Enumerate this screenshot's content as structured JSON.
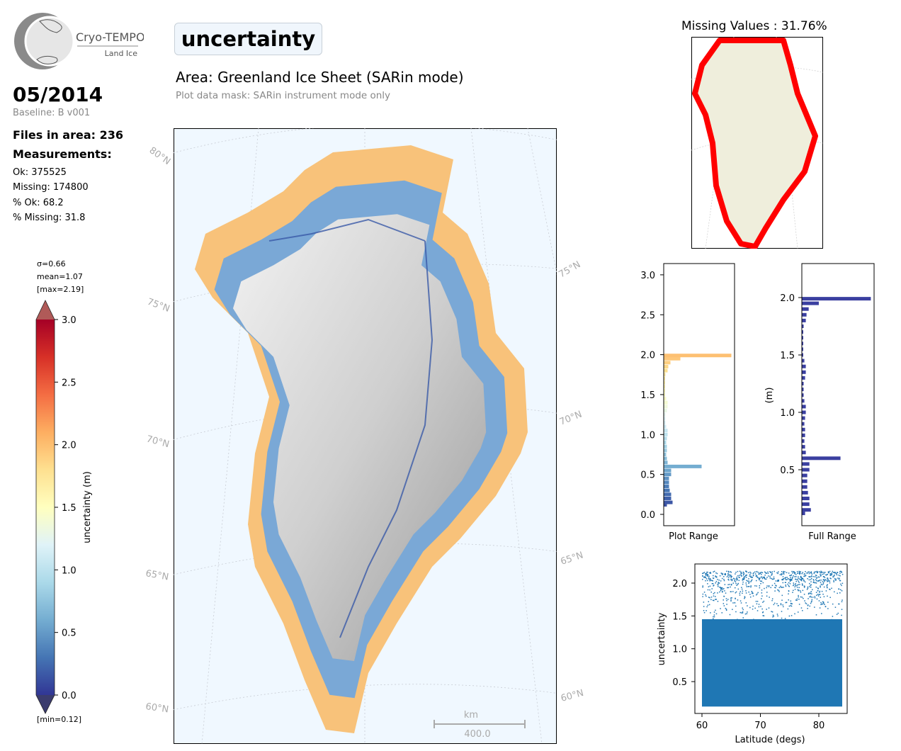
{
  "logo": {
    "name": "Cryo-TEMPO",
    "sub": "Land Ice"
  },
  "header": {
    "variable": "uncertainty",
    "area": "Area: Greenland Ice Sheet (SARin mode)",
    "mask": "Plot data mask: SARin instrument mode only"
  },
  "info": {
    "date": "05/2014",
    "baseline": "Baseline: B v001",
    "files": "Files in area: 236",
    "measurements_title": "Measurements:",
    "stats": [
      "Ok: 375525",
      "Missing: 174800",
      "% Ok: 68.2",
      "% Missing: 31.8"
    ]
  },
  "colorbar": {
    "sigma": "σ=0.66",
    "mean": "mean=1.07",
    "max": "[max=2.19]",
    "min": "[min=0.12]",
    "label": "uncertainty (m)",
    "ticks": [
      "0.0",
      "0.5",
      "1.0",
      "1.5",
      "2.0",
      "2.5",
      "3.0"
    ],
    "range": [
      0,
      3
    ],
    "colors": [
      "#313695",
      "#4575b4",
      "#74add1",
      "#abd9e9",
      "#e0f3f8",
      "#ffffbf",
      "#fee090",
      "#fdae61",
      "#f46d43",
      "#d73027",
      "#a50026"
    ]
  },
  "main_map": {
    "lat_labels_left": [
      "80°N",
      "75°N",
      "70°N",
      "65°N",
      "60°N"
    ],
    "lat_labels_right": [
      "75°N",
      "70°N",
      "65°N",
      "60°N"
    ],
    "scale_unit": "km",
    "scale_value": "400.0",
    "colors": {
      "ocean": "#f0f8ff",
      "high": "#f8c27a",
      "mid": "#7aa8d6",
      "ice": "#d8d8d8"
    }
  },
  "missing_map": {
    "title": "Missing Values : 31.76%",
    "colors": {
      "land": "#efeedc",
      "missing": "#ff0000"
    }
  },
  "chart_data": [
    {
      "type": "bar",
      "orientation": "horizontal",
      "title": "",
      "xlabel": "Plot Range",
      "ylabel": "",
      "ylim": [
        -0.15,
        3.15
      ],
      "yticks": [
        "0.0",
        "0.5",
        "1.0",
        "1.5",
        "2.0",
        "2.5",
        "3.0"
      ],
      "bins": [
        0.12,
        0.15,
        0.2,
        0.25,
        0.3,
        0.35,
        0.4,
        0.45,
        0.5,
        0.55,
        0.6,
        0.65,
        0.7,
        0.75,
        0.8,
        0.85,
        0.9,
        0.95,
        1.0,
        1.05,
        1.1,
        1.15,
        1.2,
        1.25,
        1.3,
        1.35,
        1.4,
        1.45,
        1.5,
        1.55,
        1.6,
        1.65,
        1.7,
        1.75,
        1.8,
        1.85,
        1.9,
        1.95,
        1.99
      ],
      "values": [
        4,
        12,
        10,
        10,
        8,
        7,
        7,
        7,
        10,
        10,
        53,
        5,
        4,
        3,
        4,
        4,
        3,
        4,
        5,
        5,
        3,
        2,
        2,
        2,
        4,
        5,
        5,
        3,
        1,
        1,
        1,
        1,
        1,
        2,
        5,
        6,
        9,
        23,
        95
      ]
    },
    {
      "type": "bar",
      "orientation": "horizontal",
      "title": "",
      "xlabel": "Full Range",
      "ylabel": "(m)",
      "ylim": [
        0.07,
        2.3
      ],
      "yticks": [
        "0.5",
        "1.0",
        "1.5",
        "2.0"
      ],
      "color": "#3a3fa0",
      "bins": [
        0.12,
        0.15,
        0.2,
        0.25,
        0.3,
        0.35,
        0.4,
        0.45,
        0.5,
        0.55,
        0.6,
        0.65,
        0.7,
        0.75,
        0.8,
        0.85,
        0.9,
        0.95,
        1.0,
        1.05,
        1.1,
        1.15,
        1.2,
        1.25,
        1.3,
        1.35,
        1.4,
        1.45,
        1.5,
        1.55,
        1.6,
        1.65,
        1.7,
        1.75,
        1.8,
        1.85,
        1.9,
        1.95,
        1.99
      ],
      "values": [
        4,
        12,
        10,
        10,
        8,
        7,
        7,
        7,
        10,
        10,
        53,
        5,
        4,
        3,
        4,
        4,
        3,
        4,
        5,
        5,
        3,
        2,
        2,
        2,
        4,
        5,
        5,
        3,
        1,
        1,
        1,
        1,
        1,
        2,
        5,
        6,
        9,
        23,
        95
      ]
    },
    {
      "type": "scatter",
      "title": "",
      "xlabel": "Latitude (degs)",
      "ylabel": "uncertainty",
      "xlim": [
        58.8,
        84.8
      ],
      "ylim": [
        0.02,
        2.31
      ],
      "xticks": [
        "60",
        "70",
        "80"
      ],
      "yticks": [
        "0.5",
        "1.0",
        "1.5",
        "2.0"
      ],
      "dense_region": {
        "x": [
          60,
          84
        ],
        "y": [
          0.12,
          1.45
        ]
      },
      "sparse_region": {
        "x": [
          60,
          84
        ],
        "y": [
          1.45,
          2.19
        ]
      },
      "color": "#1f77b4"
    }
  ]
}
